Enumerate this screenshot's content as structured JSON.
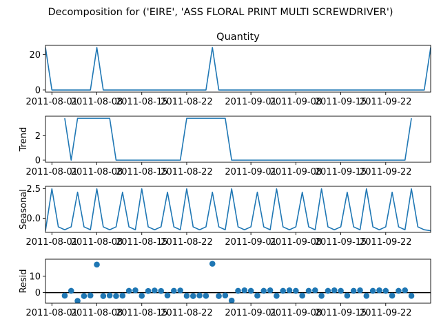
{
  "suptitle": "Decomposition for ('EIRE', 'ASS FLORAL PRINT MULTI SCREWDRIVER')",
  "chart_data": {
    "type": "line",
    "x": [
      "2011-07-31",
      "2011-08-01",
      "2011-08-02",
      "2011-08-03",
      "2011-08-04",
      "2011-08-05",
      "2011-08-06",
      "2011-08-07",
      "2011-08-08",
      "2011-08-09",
      "2011-08-10",
      "2011-08-11",
      "2011-08-12",
      "2011-08-13",
      "2011-08-14",
      "2011-08-15",
      "2011-08-16",
      "2011-08-17",
      "2011-08-18",
      "2011-08-19",
      "2011-08-20",
      "2011-08-21",
      "2011-08-22",
      "2011-08-23",
      "2011-08-24",
      "2011-08-25",
      "2011-08-26",
      "2011-08-27",
      "2011-08-28",
      "2011-08-29",
      "2011-08-30",
      "2011-08-31",
      "2011-09-01",
      "2011-09-02",
      "2011-09-03",
      "2011-09-04",
      "2011-09-05",
      "2011-09-06",
      "2011-09-07",
      "2011-09-08",
      "2011-09-09",
      "2011-09-10",
      "2011-09-11",
      "2011-09-12",
      "2011-09-13",
      "2011-09-14",
      "2011-09-15",
      "2011-09-16",
      "2011-09-17",
      "2011-09-18",
      "2011-09-19",
      "2011-09-20",
      "2011-09-21",
      "2011-09-22",
      "2011-09-23",
      "2011-09-24",
      "2011-09-25",
      "2011-09-26",
      "2011-09-27",
      "2011-09-28",
      "2011-09-29"
    ],
    "x_ticks": [
      "2011-08-01",
      "2011-08-08",
      "2011-08-15",
      "2011-08-22",
      "2011-09-01",
      "2011-09-08",
      "2011-09-15",
      "2011-09-22"
    ],
    "subplots": [
      {
        "name": "quantity",
        "kind": "line",
        "title": "Quantity",
        "ylabel": "",
        "ylim": [
          -1.2,
          25.2
        ],
        "yticks": [
          0,
          20
        ],
        "color": "#1f77b4",
        "values": [
          24,
          0,
          0,
          0,
          0,
          0,
          0,
          0,
          24,
          0,
          0,
          0,
          0,
          0,
          0,
          0,
          0,
          0,
          0,
          0,
          0,
          0,
          0,
          0,
          0,
          0,
          24,
          0,
          0,
          0,
          0,
          0,
          0,
          0,
          0,
          0,
          0,
          0,
          0,
          0,
          0,
          0,
          0,
          0,
          0,
          0,
          0,
          0,
          0,
          0,
          0,
          0,
          0,
          0,
          0,
          0,
          0,
          0,
          0,
          0,
          24
        ]
      },
      {
        "name": "trend",
        "kind": "line",
        "title": "",
        "ylabel": "Trend",
        "ylim": [
          -0.17,
          3.6
        ],
        "yticks": [
          0,
          2
        ],
        "color": "#1f77b4",
        "values": [
          null,
          null,
          null,
          3.43,
          0,
          3.43,
          3.43,
          3.43,
          3.43,
          3.43,
          3.43,
          0,
          0,
          0,
          0,
          0,
          0,
          0,
          0,
          0,
          0,
          0,
          3.43,
          3.43,
          3.43,
          3.43,
          3.43,
          3.43,
          3.43,
          0,
          0,
          0,
          0,
          0,
          0,
          0,
          0,
          0,
          0,
          0,
          0,
          0,
          0,
          0,
          0,
          0,
          0,
          0,
          0,
          0,
          0,
          0,
          0,
          0,
          0,
          0,
          0,
          3.43,
          null,
          null,
          null
        ]
      },
      {
        "name": "seasonal",
        "kind": "line",
        "title": "",
        "ylabel": "Seasonal",
        "ylim": [
          -1.2,
          2.7
        ],
        "yticks": [
          0.0,
          2.5
        ],
        "color": "#1f77b4",
        "values": [
          -1.06,
          2.49,
          -0.73,
          -0.98,
          -0.73,
          2.2,
          -0.73,
          -0.98,
          2.49,
          -0.73,
          -0.98,
          -0.73,
          2.2,
          -0.73,
          -0.98,
          2.49,
          -0.73,
          -0.98,
          -0.73,
          2.2,
          -0.73,
          -0.98,
          2.49,
          -0.73,
          -0.98,
          -0.73,
          2.2,
          -0.73,
          -0.98,
          2.49,
          -0.73,
          -0.98,
          -0.73,
          2.2,
          -0.73,
          -0.98,
          2.49,
          -0.73,
          -0.98,
          -0.73,
          2.2,
          -0.73,
          -0.98,
          2.49,
          -0.73,
          -0.98,
          -0.73,
          2.2,
          -0.73,
          -0.98,
          2.49,
          -0.73,
          -0.98,
          -0.73,
          2.2,
          -0.73,
          -0.98,
          2.49,
          -0.73,
          -0.98,
          -1.06
        ]
      },
      {
        "name": "resid",
        "kind": "scatter",
        "title": "",
        "ylabel": "Resid",
        "ylim": [
          -6.5,
          20.5
        ],
        "yticks": [
          0,
          10
        ],
        "color": "#1f77b4",
        "values": [
          null,
          null,
          null,
          -1.9,
          1.1,
          -5.1,
          -2.1,
          -1.8,
          17.2,
          -2.1,
          -1.8,
          -2.1,
          -1.9,
          1.1,
          1.4,
          -2.0,
          1.0,
          1.3,
          1.0,
          -1.8,
          1.1,
          1.3,
          -2.0,
          -2.1,
          -1.8,
          -2.0,
          17.7,
          -2.1,
          -1.8,
          -4.9,
          1.1,
          1.4,
          1.1,
          -1.9,
          1.1,
          1.4,
          -2.0,
          1.1,
          1.4,
          1.1,
          -1.9,
          1.1,
          1.4,
          -2.0,
          1.1,
          1.4,
          1.1,
          -1.9,
          1.1,
          1.4,
          -2.0,
          1.1,
          1.4,
          1.1,
          -1.9,
          1.1,
          1.4,
          -2.0,
          null,
          null,
          null
        ]
      }
    ]
  }
}
